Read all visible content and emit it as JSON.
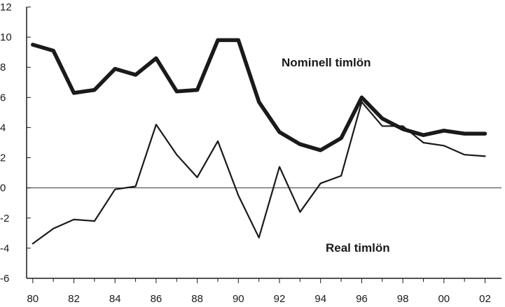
{
  "chart_data": {
    "type": "line",
    "title": "",
    "xlabel": "",
    "ylabel": "",
    "x": [
      1980,
      1981,
      1982,
      1983,
      1984,
      1985,
      1986,
      1987,
      1988,
      1989,
      1990,
      1991,
      1992,
      1993,
      1994,
      1995,
      1996,
      1997,
      1998,
      1999,
      2000,
      2001,
      2002
    ],
    "x_tick_labels": [
      "80",
      "82",
      "84",
      "86",
      "88",
      "90",
      "92",
      "94",
      "96",
      "98",
      "00",
      "02"
    ],
    "x_tick_values": [
      1980,
      1982,
      1984,
      1986,
      1988,
      1990,
      1992,
      1994,
      1996,
      1998,
      2000,
      2002
    ],
    "y_tick_labels": [
      "12",
      "10",
      "8",
      "6",
      "4",
      "2",
      "0",
      "-2",
      "-4",
      "-6"
    ],
    "y_tick_values": [
      12,
      10,
      8,
      6,
      4,
      2,
      0,
      -2,
      -4,
      -6
    ],
    "xlim": [
      1979.7,
      2002.8
    ],
    "ylim": [
      -6,
      12
    ],
    "grid": false,
    "zero_line": true,
    "series": [
      {
        "name": "Nominell timlön",
        "color": "#1a1a1a",
        "values": [
          9.5,
          9.1,
          6.3,
          6.5,
          7.9,
          7.5,
          8.6,
          6.4,
          6.5,
          9.8,
          9.8,
          5.7,
          3.7,
          2.9,
          2.5,
          3.3,
          6.0,
          4.6,
          3.9,
          3.5,
          3.8,
          3.6,
          3.6
        ]
      },
      {
        "name": "Real timlön",
        "color": "#1a1a1a",
        "values": [
          -3.7,
          -2.7,
          -2.1,
          -2.2,
          -0.1,
          0.1,
          4.2,
          2.2,
          0.7,
          3.1,
          -0.5,
          -3.3,
          1.4,
          -1.6,
          0.3,
          0.8,
          5.7,
          4.1,
          4.1,
          3.0,
          2.8,
          2.2,
          2.1
        ]
      }
    ]
  }
}
